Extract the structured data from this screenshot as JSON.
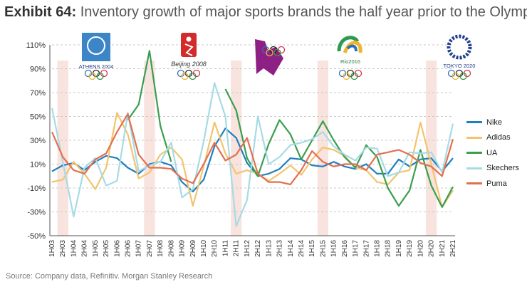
{
  "title": {
    "exhibit": "Exhibit 64:",
    "text": "Inventory growth of major sports brands the half year prior to the Olympics"
  },
  "source": "Source: Company data, Refinitiv. Morgan Stanley Research",
  "logos": [
    {
      "name": "athens-2004-logo",
      "label": "ATHENS 2004"
    },
    {
      "name": "beijing-2008-logo",
      "label": "Beijing 2008"
    },
    {
      "name": "london-2012-logo",
      "label": ""
    },
    {
      "name": "rio-2016-logo",
      "label": "Rio2016"
    },
    {
      "name": "tokyo-2020-logo",
      "label": "TOKYO 2020"
    }
  ],
  "chart_data": {
    "type": "line",
    "title": "Inventory growth of major sports brands the half year prior to the Olympics",
    "xlabel": "",
    "ylabel": "",
    "ylim": [
      -50,
      110
    ],
    "yticks": [
      110,
      90,
      70,
      50,
      30,
      10,
      -10,
      -30,
      -50
    ],
    "ytick_labels": [
      "110%",
      "90%",
      "70%",
      "50%",
      "30%",
      "10%",
      "-10%",
      "-30%",
      "-50%"
    ],
    "categories": [
      "1H03",
      "2H03",
      "1H04",
      "2H04",
      "1H05",
      "2H05",
      "1H06",
      "2H06",
      "1H07",
      "2H07",
      "1H08",
      "2H08",
      "1H09",
      "2H09",
      "1H10",
      "2H10",
      "1H11",
      "2H11",
      "1H12",
      "2H12",
      "1H13",
      "2H13",
      "1H14",
      "2H14",
      "1H15",
      "2H15",
      "1H16",
      "2H16",
      "1H17",
      "2H17",
      "1H18",
      "2H18",
      "1H19",
      "2H19",
      "1H20",
      "2H20",
      "1H21",
      "2H21"
    ],
    "highlight_bands": [
      "2H03",
      "2H07",
      "2H11",
      "2H15",
      "2H20"
    ],
    "series": [
      {
        "name": "Nike",
        "color": "#1f7fbf",
        "values": [
          4,
          9,
          11,
          5,
          12,
          17,
          15,
          7,
          2,
          10,
          12,
          9,
          -5,
          -13,
          -3,
          25,
          40,
          32,
          11,
          0,
          2,
          6,
          15,
          14,
          9,
          8,
          12,
          8,
          6,
          10,
          2,
          2,
          14,
          8,
          14,
          15,
          4,
          15
        ]
      },
      {
        "name": "Adidas",
        "color": "#f2c46e",
        "values": [
          -5,
          -3,
          12,
          2,
          -11,
          7,
          53,
          35,
          -2,
          3,
          18,
          24,
          14,
          -25,
          8,
          45,
          19,
          2,
          5,
          2,
          -4,
          2,
          9,
          1,
          14,
          24,
          22,
          17,
          7,
          5,
          -5,
          -7,
          3,
          5,
          45,
          10,
          -26,
          -12
        ]
      },
      {
        "name": "UA",
        "color": "#3a9e4e",
        "values": [
          null,
          null,
          null,
          null,
          null,
          null,
          null,
          47,
          60,
          105,
          42,
          12,
          null,
          null,
          null,
          null,
          73,
          55,
          15,
          0,
          27,
          47,
          35,
          14,
          30,
          46,
          30,
          16,
          7,
          26,
          16,
          -10,
          -25,
          -12,
          22,
          -8,
          -26,
          -9
        ]
      },
      {
        "name": "Skechers",
        "color": "#a6dbe6",
        "values": [
          57,
          12,
          -34,
          7,
          15,
          -8,
          -4,
          53,
          4,
          9,
          12,
          28,
          -18,
          -11,
          29,
          78,
          50,
          -42,
          -20,
          50,
          10,
          16,
          26,
          28,
          31,
          37,
          25,
          18,
          13,
          24,
          23,
          0,
          3,
          20,
          19,
          20,
          3,
          44
        ]
      },
      {
        "name": "Puma",
        "color": "#e46f4f",
        "values": [
          37,
          16,
          5,
          2,
          14,
          19,
          37,
          52,
          18,
          7,
          7,
          6,
          -2,
          -6,
          10,
          28,
          13,
          18,
          32,
          2,
          -5,
          -5,
          -7,
          5,
          21,
          12,
          8,
          10,
          10,
          5,
          18,
          20,
          22,
          18,
          11,
          8,
          0,
          31
        ]
      }
    ]
  }
}
